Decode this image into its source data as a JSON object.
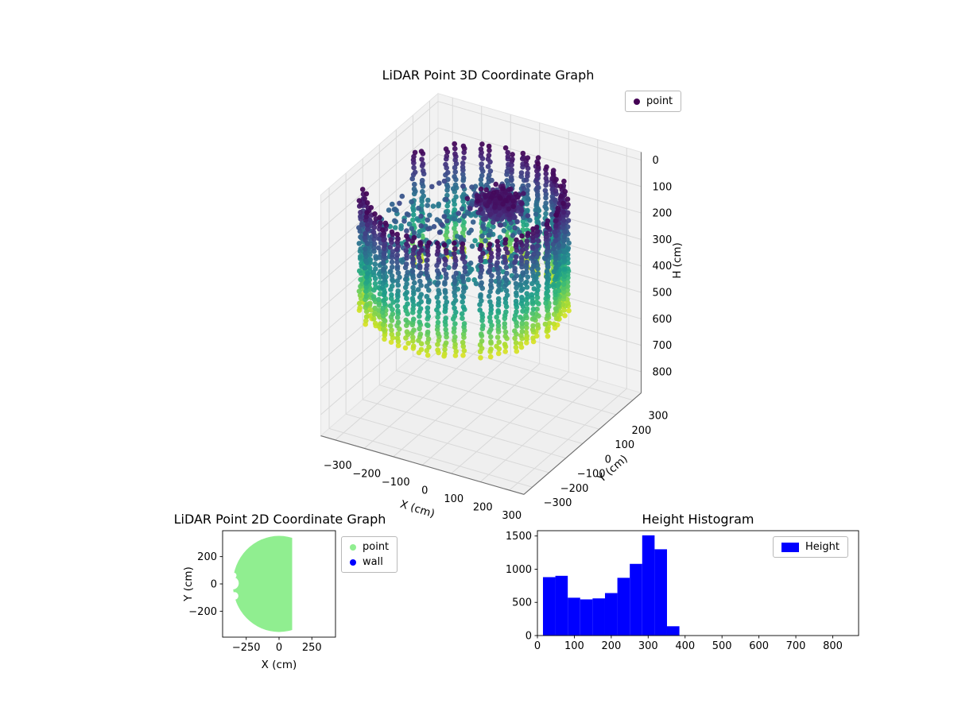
{
  "figure": {
    "background": "#ffffff"
  },
  "chart_data": [
    {
      "id": "plot3d",
      "type": "scatter3d",
      "title": "LiDAR Point 3D Coordinate Graph",
      "xlabel": "X (cm)",
      "ylabel": "Y (cm)",
      "zlabel": "H (cm)",
      "x_ticks": [
        -300,
        -200,
        -100,
        0,
        100,
        200,
        300
      ],
      "y_ticks": [
        -300,
        -200,
        -100,
        0,
        100,
        200,
        300
      ],
      "h_ticks": [
        0,
        100,
        200,
        300,
        400,
        500,
        600,
        700,
        800
      ],
      "x_range": [
        -350,
        350
      ],
      "y_range": [
        -350,
        350
      ],
      "h_range": [
        -30,
        880
      ],
      "h_axis_inverted": true,
      "view": {
        "elev": 30,
        "azim": -60
      },
      "legend": [
        {
          "label": "point",
          "color": "#440154"
        }
      ],
      "colormap_viridis": [
        "#440154",
        "#482878",
        "#3e4989",
        "#31688e",
        "#26828e",
        "#1f9e89",
        "#35b779",
        "#6ece58",
        "#b5de2b",
        "#fde725"
      ],
      "color_value_range": [
        60,
        520
      ],
      "point_cloud": {
        "wall": {
          "center_x": -60,
          "center_y": 0,
          "radius": 300,
          "radius_jitter": 14,
          "angle_step_deg": 5,
          "gap_angle_range": [
            100,
            205
          ],
          "gap_probability": 0.38,
          "h_min": 70,
          "h_max": 500,
          "h_step": 15
        },
        "floor": {
          "count": 340,
          "center_x": -60,
          "center_y": 20,
          "radius": 270,
          "h_min": 160,
          "h_max": 300
        },
        "cluster": {
          "count": 300,
          "center_x": 30,
          "center_y": 60,
          "spread_x": 85,
          "spread_y": 75,
          "h_min": 70,
          "h_max": 150
        }
      }
    },
    {
      "id": "plot2d",
      "type": "scatter",
      "title": "LiDAR Point 2D Coordinate Graph",
      "xlabel": "X (cm)",
      "ylabel": "Y (cm)",
      "x_ticks": [
        -250,
        0,
        250
      ],
      "y_ticks": [
        -200,
        0,
        200
      ],
      "x_range": [
        -430,
        430
      ],
      "y_range": [
        -390,
        390
      ],
      "legend": [
        {
          "label": "point",
          "color": "#90ee90"
        },
        {
          "label": "wall",
          "color": "#0000ff"
        }
      ],
      "disc": {
        "center_x": 0,
        "center_y": 0,
        "radius": 352,
        "clip_x_max": 100,
        "color": "#90ee90",
        "holes": [
          {
            "x": -352,
            "y": 5,
            "r": 45
          },
          {
            "x": -338,
            "y": -88,
            "r": 28
          },
          {
            "x": -344,
            "y": 62,
            "r": 20
          }
        ]
      }
    },
    {
      "id": "height_histogram",
      "type": "bar",
      "title": "Height Histogram",
      "legend": [
        {
          "label": "Height",
          "color": "#0000ff"
        }
      ],
      "x_ticks": [
        0,
        100,
        200,
        300,
        400,
        500,
        600,
        700,
        800
      ],
      "y_ticks": [
        0,
        500,
        1000,
        1500
      ],
      "x_range": [
        0,
        870
      ],
      "y_range": [
        0,
        1580
      ],
      "bar_color": "#0000ff",
      "bin_start": 15,
      "bin_width": 33.6,
      "values": [
        880,
        900,
        570,
        545,
        560,
        640,
        870,
        1080,
        1510,
        1300,
        140
      ]
    }
  ]
}
